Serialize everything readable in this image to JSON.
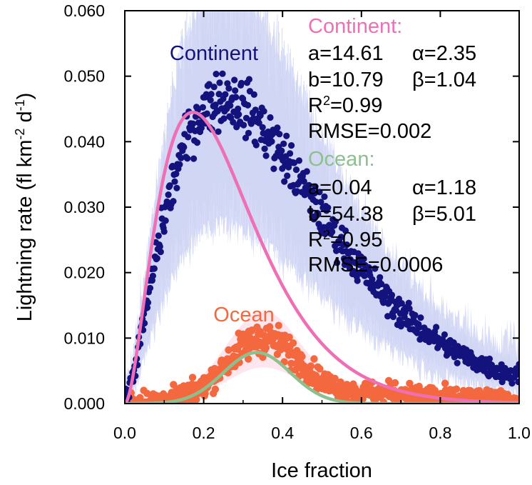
{
  "chart_data": {
    "type": "scatter",
    "xlabel": "Ice fraction",
    "ylabel_main": "Lightning rate (fl km",
    "ylabel_sup1": "-2",
    "ylabel_mid": " d",
    "ylabel_sup2": "-1",
    "ylabel_end": ")",
    "xlim": [
      0,
      1
    ],
    "ylim": [
      0,
      0.06
    ],
    "xticks": [
      0.0,
      0.2,
      0.4,
      0.6,
      0.8,
      1.0
    ],
    "xtick_labels": [
      "0.0",
      "0.2",
      "0.4",
      "0.6",
      "0.8",
      "1.0"
    ],
    "yticks": [
      0,
      0.01,
      0.02,
      0.03,
      0.04,
      0.05,
      0.06
    ],
    "ytick_labels": [
      "0.000",
      "0.010",
      "0.020",
      "0.030",
      "0.040",
      "0.050",
      "0.060"
    ],
    "colors": {
      "continent_points": "#14137e",
      "continent_fit": "#ef6fb5",
      "continent_band": "#d8dcf6",
      "ocean_points": "#f4683f",
      "ocean_fit": "#8cc08e",
      "ocean_band": "#fde3ec"
    },
    "series": [
      {
        "name": "Continent",
        "type": "scatter",
        "peak_x": 0.24,
        "peak_y": 0.046,
        "fit": {
          "a": 14.61,
          "alpha": 2.35,
          "b": 10.79,
          "beta": 1.04
        },
        "band_upper_max": 0.06,
        "end_point": {
          "x": 1.0,
          "y": 0.006
        }
      },
      {
        "name": "Ocean",
        "type": "scatter",
        "peak_x": 0.35,
        "peak_y": 0.0095,
        "fit": {
          "a": 0.04,
          "alpha": 1.18,
          "b": 54.38,
          "beta": 5.01
        },
        "band_upper_max": 0.013
      }
    ],
    "series_labels": {
      "continent": "Continent",
      "ocean": "Ocean"
    },
    "annotations": {
      "continent": {
        "heading": "Continent:",
        "a": "a=14.61",
        "alpha": "α=2.35",
        "b": "b=10.79",
        "beta": "β=1.04",
        "r2_prefix": "R",
        "r2_sup": "2",
        "r2_value": "=0.99",
        "rmse": "RMSE=0.002"
      },
      "ocean": {
        "heading": "Ocean:",
        "a": "a=0.04",
        "alpha": "α=1.18",
        "b": "b=54.38",
        "beta": "β=5.01",
        "r2_prefix": "R",
        "r2_sup": "2",
        "r2_value": "=0.95",
        "rmse": "RMSE=0.0006"
      }
    }
  }
}
